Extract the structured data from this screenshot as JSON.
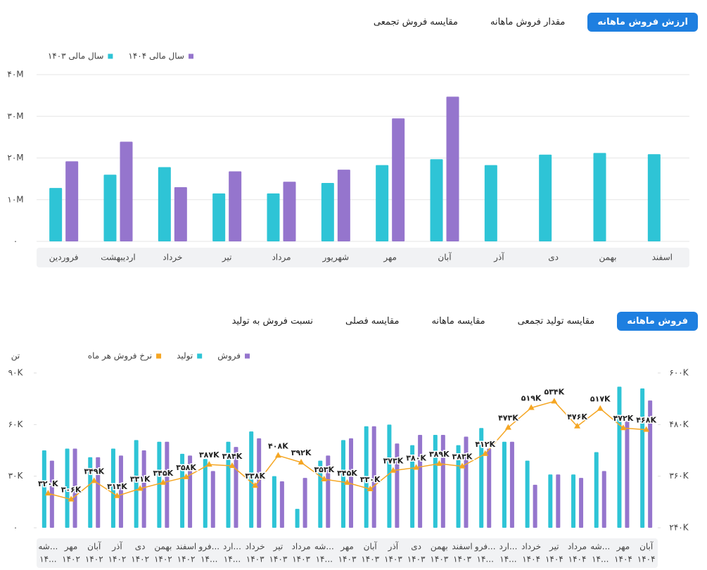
{
  "tabs_top": {
    "items": [
      "ارزش فروش ماهانه",
      "مقدار فروش ماهانه",
      "مقایسه فروش تجمعی"
    ],
    "active": 0
  },
  "tabs_bottom": {
    "items": [
      "فروش ماهانه",
      "مقایسه تولید تجمعی",
      "مقایسه ماهانه",
      "مقایسه فصلی",
      "نسبت فروش به تولید"
    ],
    "active": 0
  },
  "chart_data": [
    {
      "type": "bar",
      "categories": [
        "فروردین",
        "اردیبهشت",
        "خرداد",
        "تیر",
        "مرداد",
        "شهریور",
        "مهر",
        "آبان",
        "آذر",
        "دی",
        "بهمن",
        "اسفند"
      ],
      "series": [
        {
          "name": "سال مالی ۱۴۰۴",
          "color": "#9575cd",
          "values": [
            19200000,
            23900000,
            13000000,
            16800000,
            14300000,
            17200000,
            29500000,
            34700000,
            null,
            null,
            null,
            null
          ]
        },
        {
          "name": "سال مالی ۱۴۰۳",
          "color": "#2ec4d6",
          "values": [
            12800000,
            16000000,
            17800000,
            11500000,
            11500000,
            14000000,
            18300000,
            19700000,
            18300000,
            20800000,
            21200000,
            20900000
          ]
        }
      ],
      "ylim": [
        0,
        40000000
      ],
      "yticks": [
        {
          "value": 0,
          "label": "۰"
        },
        {
          "value": 10000000,
          "label": "۱۰M"
        },
        {
          "value": 20000000,
          "label": "۲۰M"
        },
        {
          "value": 30000000,
          "label": "۳۰M"
        },
        {
          "value": 40000000,
          "label": "۴۰M"
        }
      ],
      "grid": true
    },
    {
      "type": "combo",
      "y_label": "تن",
      "categories": [
        "شه...",
        "مهر",
        "آبان",
        "آذر",
        "دی",
        "بهمن",
        "اسفند",
        "فرو...",
        "ارد...",
        "خرداد",
        "تیر",
        "مرداد",
        "شه...",
        "مهر",
        "آبان",
        "آذر",
        "دی",
        "بهمن",
        "اسفند",
        "فرو...",
        "ارد...",
        "خرداد",
        "تیر",
        "مرداد",
        "شه...",
        "مهر",
        "آبان"
      ],
      "category_years": [
        "۱۴...",
        "۱۴۰۲",
        "۱۴۰۲",
        "۱۴۰۲",
        "۱۴۰۲",
        "۱۴۰۲",
        "۱۴۰۲",
        "۱۴...",
        "۱۴...",
        "۱۴۰۳",
        "۱۴۰۳",
        "۱۴۰۳",
        "۱۴...",
        "۱۴۰۳",
        "۱۴۰۳",
        "۱۴۰۳",
        "۱۴۰۳",
        "۱۴۰۳",
        "۱۴۰۳",
        "۱۴...",
        "۱۴...",
        "۱۴۰۴",
        "۱۴۰۴",
        "۱۴۰۴",
        "۱۴...",
        "۱۴۰۴",
        "۱۴۰۴"
      ],
      "series": [
        {
          "name": "فروش",
          "color": "#9575cd",
          "type": "bar",
          "values": [
            39000,
            46000,
            41000,
            42000,
            45000,
            50000,
            42000,
            33000,
            47000,
            52000,
            27000,
            29000,
            42000,
            52000,
            59000,
            49000,
            54000,
            54000,
            53000,
            46000,
            50000,
            25000,
            31000,
            29000,
            33000,
            62000,
            74000
          ]
        },
        {
          "name": "تولید",
          "color": "#2ec4d6",
          "type": "bar",
          "values": [
            45000,
            46000,
            41000,
            46000,
            51000,
            50000,
            43000,
            40000,
            50000,
            56000,
            30000,
            11000,
            39000,
            51000,
            59000,
            60000,
            48000,
            54000,
            48000,
            58000,
            50000,
            39000,
            31000,
            31000,
            44000,
            82000,
            81000
          ]
        },
        {
          "name": "نرخ فروش هر ماه",
          "color": "#f5a623",
          "type": "line",
          "axis": "y2",
          "values": [
            320000,
            306000,
            349000,
            314000,
            331000,
            345000,
            358000,
            387000,
            384000,
            338000,
            408000,
            392000,
            353000,
            345000,
            330000,
            373000,
            380000,
            389000,
            383000,
            412000,
            473000,
            519000,
            534000,
            476000,
            517000,
            472000,
            468000
          ],
          "value_labels": [
            "۳۲۰K",
            "۳۰۶K",
            "۳۴۹K",
            "۳۱۴K",
            "۳۳۱K",
            "۳۴۵K",
            "۳۵۸K",
            "۳۸۷K",
            "۳۸۴K",
            "۳۳۸K",
            "۴۰۸K",
            "۳۹۲K",
            "۳۵۳K",
            "۳۴۵K",
            "۳۳۰K",
            "۳۷۳K",
            "۳۸۰K",
            "۳۸۹K",
            "۳۸۳K",
            "۴۱۲K",
            "۴۷۳K",
            "۵۱۹K",
            "۵۳۴K",
            "۴۷۶K",
            "۵۱۷K",
            "۴۷۲K",
            "۴۶۸K"
          ]
        }
      ],
      "ylim": [
        0,
        90000
      ],
      "yticks": [
        {
          "value": 0,
          "label": "۰"
        },
        {
          "value": 30000,
          "label": "۳۰K"
        },
        {
          "value": 60000,
          "label": "۶۰K"
        },
        {
          "value": 90000,
          "label": "۹۰K"
        }
      ],
      "y2lim": [
        240000,
        600000
      ],
      "y2ticks": [
        {
          "value": 240000,
          "label": "۲۴۰K"
        },
        {
          "value": 360000,
          "label": "۳۶۰K"
        },
        {
          "value": 480000,
          "label": "۴۸۰K"
        },
        {
          "value": 600000,
          "label": "۶۰۰K"
        }
      ],
      "grid": false
    }
  ]
}
